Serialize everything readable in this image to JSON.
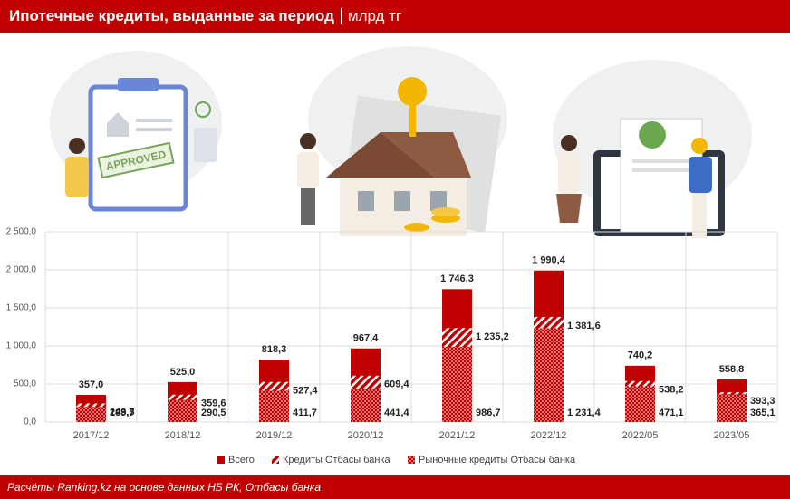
{
  "chart_data": {
    "type": "bar",
    "title": "Ипотечные кредиты, выданные за период",
    "unit": "млрд тг",
    "illustration_text": "APPROVED",
    "source": "Расчёты Ranking.kz на основе данных НБ РК, Отбасы банка",
    "categories": [
      "2017/12",
      "2018/12",
      "2019/12",
      "2020/12",
      "2021/12",
      "2022/12",
      "2022/05",
      "2023/05"
    ],
    "series": [
      {
        "name": "Всего",
        "color": "#c00000",
        "fill_style": "solid",
        "values": [
          357.0,
          525.0,
          818.3,
          967.4,
          1746.3,
          1990.4,
          740.2,
          558.8
        ],
        "value_labels": [
          "357,0",
          "525,0",
          "818,3",
          "967,4",
          "1 746,3",
          "1 990,4",
          "740,2",
          "558,8"
        ]
      },
      {
        "name": "Кредиты Отбасы банка",
        "color": "#c00000",
        "fill_style": "hatch",
        "values": [
          243.5,
          359.6,
          527.4,
          609.4,
          1235.2,
          1381.6,
          538.2,
          393.3
        ],
        "value_labels": [
          "243,5",
          "359,6",
          "527,4",
          "609,4",
          "1 235,2",
          "1 381,6",
          "538,2",
          "393,3"
        ]
      },
      {
        "name": "Рыночные кредиты Отбасы банка",
        "color": "#c00000",
        "fill_style": "dots",
        "values": [
          199.7,
          290.5,
          411.7,
          441.4,
          986.7,
          1231.4,
          471.1,
          365.1
        ],
        "value_labels": [
          "199,7",
          "290,5",
          "411,7",
          "441,4",
          "986,7",
          "1 231,4",
          "471,1",
          "365,1"
        ]
      }
    ],
    "ylim": [
      0,
      2500
    ],
    "yticks": [
      {
        "value": 0,
        "label": "0,0"
      },
      {
        "value": 500,
        "label": "500,0"
      },
      {
        "value": 1000,
        "label": "1 000,0"
      },
      {
        "value": 1500,
        "label": "1 500,0"
      },
      {
        "value": 2000,
        "label": "2 000,0"
      },
      {
        "value": 2500,
        "label": "2 500,0"
      }
    ],
    "grid": true,
    "legend": "bottom"
  }
}
